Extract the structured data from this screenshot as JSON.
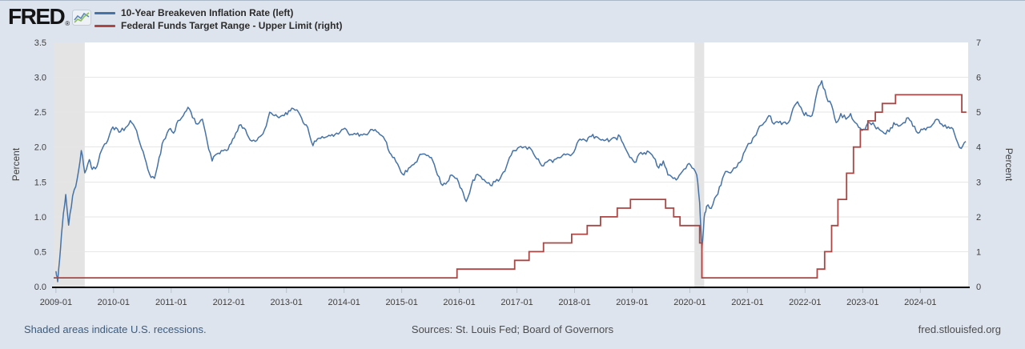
{
  "header": {
    "logo_text": "FRED",
    "legend": [
      {
        "label": "10-Year Breakeven Inflation Rate (left)",
        "color": "#4572a7"
      },
      {
        "label": "Federal Funds Target Range - Upper Limit (right)",
        "color": "#aa4643"
      }
    ]
  },
  "footer": {
    "recession_note": "Shaded areas indicate U.S. recessions.",
    "sources": "Sources: St. Louis Fed; Board of Governors",
    "site": "fred.stlouisfed.org"
  },
  "chart_data": {
    "type": "line",
    "x_range": [
      2008.96,
      2024.83
    ],
    "grid": "horizontal",
    "legend_position": "top-left-outside",
    "colors": {
      "breakeven_line": "#4572a7",
      "fed_funds_line": "#aa4643",
      "recession_band": "#e4e4e4",
      "gridline": "#e6e6e6",
      "axis_line": "#000000",
      "plot_background": "#ffffff",
      "page_background": "#dde4ee"
    },
    "left_axis": {
      "title": "Percent",
      "min": 0,
      "max": 3.5,
      "ticks": [
        {
          "v": 0.0,
          "label": "0.0"
        },
        {
          "v": 0.5,
          "label": "0.5"
        },
        {
          "v": 1.0,
          "label": "1.0"
        },
        {
          "v": 1.5,
          "label": "1.5"
        },
        {
          "v": 2.0,
          "label": "2.0"
        },
        {
          "v": 2.5,
          "label": "2.5"
        },
        {
          "v": 3.0,
          "label": "3.0"
        },
        {
          "v": 3.5,
          "label": "3.5"
        }
      ],
      "grid_values": [
        0.5,
        1.0,
        1.5,
        2.0,
        2.5,
        3.0
      ]
    },
    "right_axis": {
      "title": "Percent",
      "min": 0,
      "max": 7,
      "ticks": [
        {
          "v": 0,
          "label": "0"
        },
        {
          "v": 1,
          "label": "1"
        },
        {
          "v": 2,
          "label": "2"
        },
        {
          "v": 3,
          "label": "3"
        },
        {
          "v": 4,
          "label": "4"
        },
        {
          "v": 5,
          "label": "5"
        },
        {
          "v": 6,
          "label": "6"
        },
        {
          "v": 7,
          "label": "7"
        }
      ]
    },
    "x_ticks": [
      {
        "t": 2009,
        "label": "2009-01"
      },
      {
        "t": 2010,
        "label": "2010-01"
      },
      {
        "t": 2011,
        "label": "2011-01"
      },
      {
        "t": 2012,
        "label": "2012-01"
      },
      {
        "t": 2013,
        "label": "2013-01"
      },
      {
        "t": 2014,
        "label": "2014-01"
      },
      {
        "t": 2015,
        "label": "2015-01"
      },
      {
        "t": 2016,
        "label": "2016-01"
      },
      {
        "t": 2017,
        "label": "2017-01"
      },
      {
        "t": 2018,
        "label": "2018-01"
      },
      {
        "t": 2019,
        "label": "2019-01"
      },
      {
        "t": 2020,
        "label": "2020-01"
      },
      {
        "t": 2021,
        "label": "2021-01"
      },
      {
        "t": 2022,
        "label": "2022-01"
      },
      {
        "t": 2023,
        "label": "2023-01"
      },
      {
        "t": 2024,
        "label": "2024-01"
      }
    ],
    "recessions": [
      [
        2008.96,
        2009.5
      ],
      [
        2020.08,
        2020.25
      ]
    ],
    "series": [
      {
        "name": "10-Year Breakeven Inflation Rate (left)",
        "axis": "left",
        "style": "line",
        "color": "#4572a7",
        "points": [
          [
            2009.0,
            0.22
          ],
          [
            2009.03,
            0.07
          ],
          [
            2009.08,
            0.55
          ],
          [
            2009.13,
            1.05
          ],
          [
            2009.17,
            1.32
          ],
          [
            2009.22,
            0.88
          ],
          [
            2009.29,
            1.3
          ],
          [
            2009.37,
            1.55
          ],
          [
            2009.44,
            1.95
          ],
          [
            2009.5,
            1.63
          ],
          [
            2009.58,
            1.82
          ],
          [
            2009.63,
            1.68
          ],
          [
            2009.71,
            1.72
          ],
          [
            2009.79,
            1.95
          ],
          [
            2009.87,
            2.05
          ],
          [
            2009.96,
            2.25
          ],
          [
            2010.04,
            2.28
          ],
          [
            2010.12,
            2.22
          ],
          [
            2010.21,
            2.28
          ],
          [
            2010.29,
            2.38
          ],
          [
            2010.37,
            2.28
          ],
          [
            2010.46,
            2.05
          ],
          [
            2010.54,
            1.85
          ],
          [
            2010.62,
            1.62
          ],
          [
            2010.71,
            1.55
          ],
          [
            2010.79,
            1.85
          ],
          [
            2010.87,
            2.1
          ],
          [
            2010.96,
            2.25
          ],
          [
            2011.04,
            2.2
          ],
          [
            2011.12,
            2.38
          ],
          [
            2011.21,
            2.45
          ],
          [
            2011.29,
            2.57
          ],
          [
            2011.37,
            2.42
          ],
          [
            2011.46,
            2.33
          ],
          [
            2011.54,
            2.4
          ],
          [
            2011.62,
            2.1
          ],
          [
            2011.71,
            1.8
          ],
          [
            2011.79,
            1.9
          ],
          [
            2011.87,
            1.95
          ],
          [
            2011.96,
            1.95
          ],
          [
            2012.04,
            2.05
          ],
          [
            2012.12,
            2.2
          ],
          [
            2012.21,
            2.32
          ],
          [
            2012.29,
            2.25
          ],
          [
            2012.37,
            2.1
          ],
          [
            2012.46,
            2.08
          ],
          [
            2012.54,
            2.15
          ],
          [
            2012.62,
            2.25
          ],
          [
            2012.71,
            2.5
          ],
          [
            2012.79,
            2.45
          ],
          [
            2012.87,
            2.42
          ],
          [
            2012.96,
            2.45
          ],
          [
            2013.04,
            2.52
          ],
          [
            2013.12,
            2.55
          ],
          [
            2013.21,
            2.5
          ],
          [
            2013.29,
            2.35
          ],
          [
            2013.37,
            2.28
          ],
          [
            2013.46,
            2.02
          ],
          [
            2013.54,
            2.12
          ],
          [
            2013.62,
            2.15
          ],
          [
            2013.71,
            2.15
          ],
          [
            2013.79,
            2.18
          ],
          [
            2013.87,
            2.2
          ],
          [
            2013.96,
            2.25
          ],
          [
            2014.04,
            2.25
          ],
          [
            2014.12,
            2.18
          ],
          [
            2014.21,
            2.18
          ],
          [
            2014.29,
            2.18
          ],
          [
            2014.37,
            2.18
          ],
          [
            2014.46,
            2.25
          ],
          [
            2014.54,
            2.25
          ],
          [
            2014.62,
            2.18
          ],
          [
            2014.71,
            2.1
          ],
          [
            2014.79,
            1.92
          ],
          [
            2014.87,
            1.85
          ],
          [
            2014.96,
            1.7
          ],
          [
            2015.04,
            1.6
          ],
          [
            2015.12,
            1.7
          ],
          [
            2015.21,
            1.75
          ],
          [
            2015.29,
            1.85
          ],
          [
            2015.37,
            1.9
          ],
          [
            2015.46,
            1.88
          ],
          [
            2015.54,
            1.8
          ],
          [
            2015.62,
            1.6
          ],
          [
            2015.71,
            1.45
          ],
          [
            2015.79,
            1.5
          ],
          [
            2015.87,
            1.6
          ],
          [
            2015.96,
            1.55
          ],
          [
            2016.04,
            1.4
          ],
          [
            2016.12,
            1.22
          ],
          [
            2016.21,
            1.45
          ],
          [
            2016.29,
            1.6
          ],
          [
            2016.37,
            1.58
          ],
          [
            2016.46,
            1.5
          ],
          [
            2016.54,
            1.45
          ],
          [
            2016.62,
            1.5
          ],
          [
            2016.71,
            1.55
          ],
          [
            2016.79,
            1.65
          ],
          [
            2016.87,
            1.85
          ],
          [
            2016.96,
            1.95
          ],
          [
            2017.04,
            2.0
          ],
          [
            2017.12,
            2.0
          ],
          [
            2017.21,
            2.0
          ],
          [
            2017.29,
            1.9
          ],
          [
            2017.37,
            1.83
          ],
          [
            2017.46,
            1.73
          ],
          [
            2017.54,
            1.8
          ],
          [
            2017.62,
            1.78
          ],
          [
            2017.71,
            1.85
          ],
          [
            2017.79,
            1.88
          ],
          [
            2017.87,
            1.9
          ],
          [
            2017.96,
            1.9
          ],
          [
            2018.04,
            2.05
          ],
          [
            2018.12,
            2.1
          ],
          [
            2018.21,
            2.08
          ],
          [
            2018.29,
            2.15
          ],
          [
            2018.37,
            2.15
          ],
          [
            2018.46,
            2.1
          ],
          [
            2018.54,
            2.1
          ],
          [
            2018.62,
            2.1
          ],
          [
            2018.71,
            2.13
          ],
          [
            2018.79,
            2.15
          ],
          [
            2018.87,
            2.0
          ],
          [
            2018.96,
            1.85
          ],
          [
            2019.04,
            1.78
          ],
          [
            2019.12,
            1.9
          ],
          [
            2019.21,
            1.92
          ],
          [
            2019.29,
            1.93
          ],
          [
            2019.37,
            1.85
          ],
          [
            2019.46,
            1.7
          ],
          [
            2019.54,
            1.8
          ],
          [
            2019.62,
            1.6
          ],
          [
            2019.71,
            1.55
          ],
          [
            2019.79,
            1.55
          ],
          [
            2019.87,
            1.65
          ],
          [
            2019.96,
            1.75
          ],
          [
            2020.04,
            1.7
          ],
          [
            2020.12,
            1.6
          ],
          [
            2020.17,
            1.2
          ],
          [
            2020.21,
            0.55
          ],
          [
            2020.25,
            1.0
          ],
          [
            2020.29,
            1.15
          ],
          [
            2020.37,
            1.12
          ],
          [
            2020.46,
            1.3
          ],
          [
            2020.54,
            1.45
          ],
          [
            2020.62,
            1.65
          ],
          [
            2020.71,
            1.63
          ],
          [
            2020.79,
            1.7
          ],
          [
            2020.87,
            1.78
          ],
          [
            2020.96,
            1.95
          ],
          [
            2021.04,
            2.05
          ],
          [
            2021.12,
            2.15
          ],
          [
            2021.21,
            2.3
          ],
          [
            2021.29,
            2.35
          ],
          [
            2021.37,
            2.45
          ],
          [
            2021.46,
            2.33
          ],
          [
            2021.54,
            2.35
          ],
          [
            2021.62,
            2.35
          ],
          [
            2021.71,
            2.35
          ],
          [
            2021.79,
            2.55
          ],
          [
            2021.87,
            2.65
          ],
          [
            2021.96,
            2.5
          ],
          [
            2022.04,
            2.45
          ],
          [
            2022.12,
            2.45
          ],
          [
            2022.21,
            2.8
          ],
          [
            2022.29,
            2.95
          ],
          [
            2022.37,
            2.72
          ],
          [
            2022.46,
            2.6
          ],
          [
            2022.54,
            2.35
          ],
          [
            2022.62,
            2.48
          ],
          [
            2022.71,
            2.4
          ],
          [
            2022.79,
            2.48
          ],
          [
            2022.87,
            2.35
          ],
          [
            2022.96,
            2.27
          ],
          [
            2023.04,
            2.25
          ],
          [
            2023.12,
            2.35
          ],
          [
            2023.21,
            2.3
          ],
          [
            2023.29,
            2.25
          ],
          [
            2023.37,
            2.2
          ],
          [
            2023.46,
            2.22
          ],
          [
            2023.54,
            2.35
          ],
          [
            2023.62,
            2.3
          ],
          [
            2023.71,
            2.35
          ],
          [
            2023.79,
            2.42
          ],
          [
            2023.87,
            2.3
          ],
          [
            2023.96,
            2.2
          ],
          [
            2024.04,
            2.25
          ],
          [
            2024.12,
            2.28
          ],
          [
            2024.21,
            2.32
          ],
          [
            2024.29,
            2.4
          ],
          [
            2024.37,
            2.33
          ],
          [
            2024.46,
            2.27
          ],
          [
            2024.54,
            2.28
          ],
          [
            2024.62,
            2.12
          ],
          [
            2024.71,
            1.98
          ],
          [
            2024.79,
            2.08
          ]
        ]
      },
      {
        "name": "Federal Funds Target Range - Upper Limit (right)",
        "axis": "right",
        "style": "step",
        "color": "#aa4643",
        "points": [
          [
            2008.96,
            0.25
          ],
          [
            2015.96,
            0.5
          ],
          [
            2016.96,
            0.75
          ],
          [
            2017.21,
            1.0
          ],
          [
            2017.46,
            1.25
          ],
          [
            2017.95,
            1.5
          ],
          [
            2018.22,
            1.75
          ],
          [
            2018.45,
            2.0
          ],
          [
            2018.74,
            2.25
          ],
          [
            2018.97,
            2.5
          ],
          [
            2019.58,
            2.25
          ],
          [
            2019.72,
            2.0
          ],
          [
            2019.83,
            1.75
          ],
          [
            2020.17,
            1.25
          ],
          [
            2020.21,
            0.25
          ],
          [
            2022.21,
            0.5
          ],
          [
            2022.34,
            1.0
          ],
          [
            2022.46,
            1.75
          ],
          [
            2022.57,
            2.5
          ],
          [
            2022.72,
            3.25
          ],
          [
            2022.84,
            4.0
          ],
          [
            2022.96,
            4.5
          ],
          [
            2023.09,
            4.75
          ],
          [
            2023.22,
            5.0
          ],
          [
            2023.34,
            5.25
          ],
          [
            2023.57,
            5.5
          ],
          [
            2024.72,
            5.0
          ],
          [
            2024.8,
            5.0
          ]
        ]
      }
    ]
  }
}
